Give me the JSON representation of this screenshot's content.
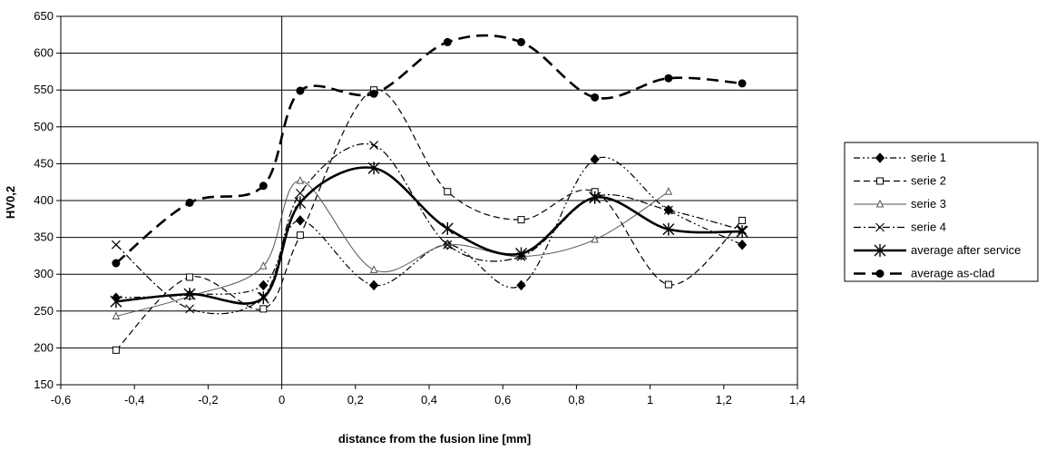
{
  "chart_data": {
    "type": "line",
    "xlabel": "distance from the fusion line [mm]",
    "ylabel": "HV0,2",
    "xlim": [
      -0.6,
      1.4
    ],
    "ylim": [
      150,
      650
    ],
    "x_ticks": [
      -0.6,
      -0.4,
      -0.2,
      0,
      0.2,
      0.4,
      0.6,
      0.8,
      1,
      1.2,
      1.4
    ],
    "x_tick_labels": [
      "-0,6",
      "-0,4",
      "-0,2",
      "0",
      "0,2",
      "0,4",
      "0,6",
      "0,8",
      "1",
      "1,2",
      "1,4"
    ],
    "y_ticks": [
      150,
      200,
      250,
      300,
      350,
      400,
      450,
      500,
      550,
      600,
      650
    ],
    "y_tick_labels": [
      "150",
      "200",
      "250",
      "300",
      "350",
      "400",
      "450",
      "500",
      "550",
      "600",
      "650"
    ],
    "grid": "horizontal",
    "legend_position": "right",
    "series": [
      {
        "name": "serie 1",
        "style": "dashdotdot-thin",
        "marker": "diamond",
        "color": "#000000",
        "points": [
          [
            -0.45,
            268
          ],
          [
            -0.25,
            272
          ],
          [
            -0.05,
            285
          ],
          [
            0.05,
            373
          ],
          [
            0.25,
            285
          ],
          [
            0.45,
            340
          ],
          [
            0.65,
            285
          ],
          [
            0.85,
            456
          ],
          [
            1.05,
            387
          ],
          [
            1.25,
            340
          ]
        ]
      },
      {
        "name": "serie 2",
        "style": "dash-thin",
        "marker": "square-open",
        "color": "#000000",
        "points": [
          [
            -0.45,
            197
          ],
          [
            -0.25,
            296
          ],
          [
            -0.05,
            253
          ],
          [
            0.05,
            353
          ],
          [
            0.25,
            550
          ],
          [
            0.45,
            412
          ],
          [
            0.65,
            374
          ],
          [
            0.85,
            412
          ],
          [
            1.05,
            286
          ],
          [
            1.25,
            373
          ]
        ]
      },
      {
        "name": "serie 3",
        "style": "solid-thin",
        "marker": "triangle-open",
        "color": "#555555",
        "points": [
          [
            -0.45,
            243
          ],
          [
            -0.25,
            270
          ],
          [
            -0.05,
            311
          ],
          [
            0.05,
            427
          ],
          [
            0.25,
            306
          ],
          [
            0.45,
            340
          ],
          [
            0.65,
            324
          ],
          [
            0.85,
            347
          ],
          [
            1.05,
            412
          ]
        ]
      },
      {
        "name": "serie 4",
        "style": "dashdot-thin",
        "marker": "x",
        "color": "#000000",
        "points": [
          [
            -0.45,
            340
          ],
          [
            -0.25,
            253
          ],
          [
            -0.05,
            270
          ],
          [
            0.05,
            410
          ],
          [
            0.25,
            475
          ],
          [
            0.45,
            340
          ],
          [
            0.65,
            324
          ],
          [
            0.85,
            405
          ],
          [
            1.05,
            387
          ],
          [
            1.25,
            360
          ]
        ]
      },
      {
        "name": "average after service",
        "style": "solid-thick",
        "marker": "asterisk",
        "color": "#000000",
        "points": [
          [
            -0.45,
            263
          ],
          [
            -0.25,
            273
          ],
          [
            -0.05,
            268
          ],
          [
            0.05,
            397
          ],
          [
            0.25,
            444
          ],
          [
            0.45,
            362
          ],
          [
            0.65,
            328
          ],
          [
            0.85,
            404
          ],
          [
            1.05,
            361
          ],
          [
            1.25,
            358
          ]
        ]
      },
      {
        "name": "average  as-clad",
        "style": "dash-thick",
        "marker": "dot",
        "color": "#000000",
        "points": [
          [
            -0.45,
            315
          ],
          [
            -0.25,
            397
          ],
          [
            -0.05,
            420
          ],
          [
            0.05,
            549
          ],
          [
            0.25,
            545
          ],
          [
            0.45,
            615
          ],
          [
            0.65,
            615
          ],
          [
            0.85,
            540
          ],
          [
            1.05,
            566
          ],
          [
            1.25,
            559
          ]
        ]
      }
    ]
  }
}
